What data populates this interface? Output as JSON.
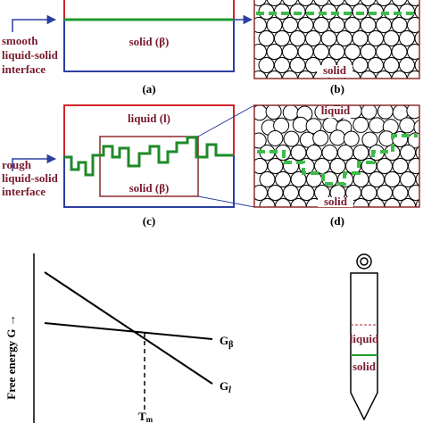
{
  "panel_a": {
    "label_lines": [
      "smooth",
      "liquid-solid",
      "interface"
    ],
    "solid": "solid (β)",
    "caption": "(a)"
  },
  "panel_b": {
    "solid": "solid",
    "caption": "(b)"
  },
  "panel_c": {
    "label_lines": [
      "rough",
      "liquid-solid",
      "interface"
    ],
    "liquid": "liquid (l)",
    "solid": "solid (β)",
    "caption": "(c)"
  },
  "panel_d": {
    "liquid": "liquid",
    "solid": "solid",
    "caption": "(d)"
  },
  "energy_plot": {
    "axis_label": "Free energy G →",
    "g_beta": {
      "symbol": "G",
      "subscript": "β"
    },
    "g_l": {
      "symbol": "G",
      "subscript": "l"
    },
    "tm": {
      "symbol": "T",
      "subscript": "m"
    }
  },
  "tube": {
    "liquid": "liquid",
    "solid": "solid"
  }
}
